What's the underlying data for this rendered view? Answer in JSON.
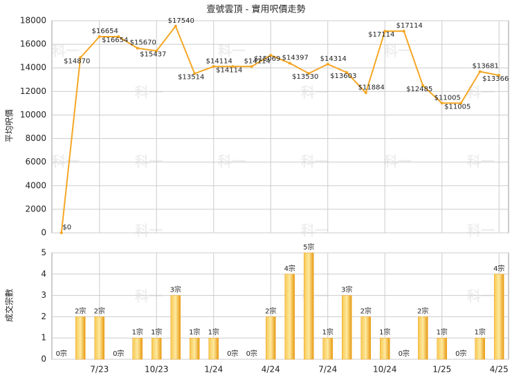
{
  "chart_data": [
    {
      "type": "line",
      "title": "壹號雲頂 - 實用呎價走勢",
      "y_label": "平均呎價",
      "color": "#f5a623",
      "grid": true,
      "watermark": "科一",
      "values": [
        0,
        14870,
        16654,
        16654,
        15670,
        15437,
        17540,
        13514,
        14114,
        14114,
        14114,
        15069,
        14397,
        13530,
        14314,
        13603,
        11884,
        17114,
        17114,
        12485,
        11005,
        11005,
        13681,
        13366
      ],
      "value_labels": [
        "$0",
        "$14870",
        "$16654",
        "$16654",
        "$15670",
        "$15437",
        "$17540",
        "$13514",
        "$14114",
        "$14114",
        "$14114",
        "$15069",
        "$14397",
        "$13530",
        "$14314",
        "$13603",
        "$11884",
        "$17114",
        "$17114",
        "$12485",
        "$11005",
        "$11005",
        "$13681",
        "$13366"
      ],
      "ylim": [
        0,
        18000
      ],
      "yticks": [
        0,
        2000,
        4000,
        6000,
        8000,
        10000,
        12000,
        14000,
        16000,
        18000
      ]
    },
    {
      "type": "bar",
      "y_label": "成交宗數",
      "color": "#f0a020",
      "grid": true,
      "categories": [
        null,
        null,
        "7/23",
        null,
        null,
        "10/23",
        null,
        null,
        "1/24",
        null,
        null,
        "4/24",
        null,
        null,
        "7/24",
        null,
        null,
        "10/24",
        null,
        null,
        "1/25",
        null,
        null,
        "4/25"
      ],
      "values": [
        0,
        2,
        2,
        0,
        1,
        1,
        3,
        1,
        1,
        0,
        0,
        2,
        4,
        5,
        1,
        3,
        2,
        1,
        0,
        2,
        1,
        0,
        1,
        4
      ],
      "value_labels": [
        "0宗",
        "2宗",
        "2宗",
        "0宗",
        "1宗",
        "1宗",
        "3宗",
        "1宗",
        "1宗",
        "0宗",
        "0宗",
        "2宗",
        "4宗",
        "5宗",
        "1宗",
        "3宗",
        "2宗",
        "1宗",
        "0宗",
        "2宗",
        "1宗",
        "0宗",
        "1宗",
        "4宗"
      ],
      "ylim": [
        0,
        5
      ],
      "yticks": [
        0,
        1,
        2,
        3,
        4,
        5
      ]
    }
  ]
}
